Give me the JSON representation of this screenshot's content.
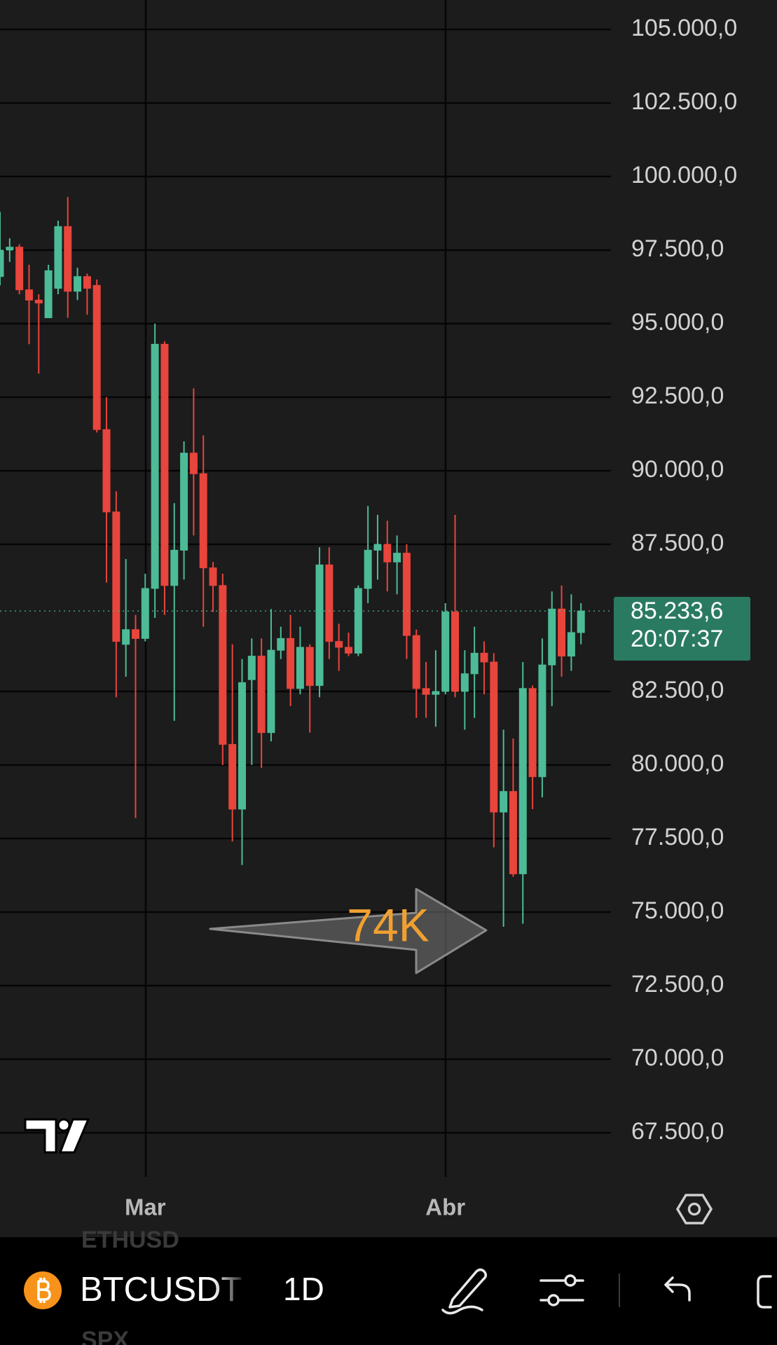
{
  "chart_data": {
    "type": "candlestick",
    "categories": [
      null,
      null,
      null,
      null,
      null,
      null,
      null,
      null,
      null,
      null,
      null,
      null,
      null,
      null,
      null,
      "Mar",
      null,
      null,
      null,
      null,
      null,
      null,
      null,
      null,
      null,
      null,
      null,
      null,
      null,
      null,
      null,
      null,
      null,
      null,
      null,
      null,
      null,
      null,
      null,
      null,
      null,
      null,
      null,
      null,
      null,
      null,
      "Abr",
      null,
      null,
      null,
      null,
      null,
      null,
      null,
      null,
      null,
      null,
      null,
      null,
      null,
      null
    ],
    "open": [
      96600,
      97500,
      97600,
      96150,
      95800,
      95200,
      96200,
      98300,
      96100,
      96600,
      96300,
      91400,
      88600,
      84100,
      84600,
      84300,
      86000,
      94300,
      86100,
      87300,
      90600,
      89900,
      86700,
      86100,
      80700,
      78500,
      82900,
      83700,
      81100,
      83900,
      84300,
      82600,
      84000,
      82700,
      86800,
      84200,
      84000,
      83800,
      86000,
      87300,
      87500,
      86900,
      87200,
      84400,
      82600,
      82400,
      82500,
      85200,
      82500,
      83100,
      83800,
      83500,
      78400,
      79100,
      76300,
      82600,
      79600,
      83400,
      85300,
      83700,
      84500
    ],
    "high": [
      98800,
      97900,
      97700,
      97000,
      96000,
      97000,
      98500,
      99300,
      96900,
      96700,
      96500,
      92500,
      89300,
      87000,
      85100,
      86500,
      95000,
      94400,
      88900,
      91000,
      92800,
      91200,
      86900,
      86500,
      84100,
      83600,
      84300,
      84300,
      85300,
      84700,
      85100,
      84700,
      84100,
      87400,
      87400,
      84800,
      84500,
      86100,
      88800,
      88500,
      88300,
      87800,
      87500,
      84600,
      83500,
      83900,
      85500,
      88500,
      83900,
      84700,
      84200,
      83800,
      81200,
      80900,
      83500,
      82700,
      84300,
      85900,
      86100,
      85800,
      85500
    ],
    "low": [
      96300,
      97100,
      96000,
      94300,
      93300,
      95300,
      96000,
      95200,
      95800,
      95300,
      91300,
      86200,
      82300,
      83000,
      78200,
      84200,
      85000,
      85100,
      81500,
      86300,
      87800,
      84700,
      85200,
      80000,
      77400,
      76600,
      80000,
      79900,
      80800,
      83600,
      82000,
      82400,
      81100,
      82300,
      83600,
      83200,
      83700,
      83700,
      85500,
      86300,
      85900,
      85800,
      83600,
      81600,
      81600,
      81300,
      82400,
      82300,
      81200,
      81600,
      82400,
      77200,
      74500,
      76200,
      74600,
      78500,
      78900,
      82000,
      83000,
      83200,
      84100
    ],
    "close": [
      97500,
      97600,
      96150,
      95800,
      95700,
      96800,
      98300,
      96100,
      96600,
      96200,
      91400,
      88600,
      84200,
      84600,
      84300,
      86000,
      94300,
      86100,
      87300,
      90600,
      89900,
      86700,
      86100,
      80700,
      78500,
      82800,
      83700,
      81100,
      83900,
      84300,
      82600,
      84000,
      82700,
      86800,
      84200,
      84000,
      83800,
      86000,
      87300,
      87500,
      86900,
      87200,
      84400,
      82600,
      82400,
      82500,
      85200,
      82500,
      83100,
      83800,
      83500,
      78400,
      79100,
      76300,
      82600,
      79600,
      83400,
      85300,
      83700,
      84500,
      85233.6
    ],
    "up_color": "#4dbb97",
    "down_color": "#e8453c",
    "ylim": [
      66000,
      106000
    ],
    "yticks": [
      {
        "value": 67500,
        "label": "67.500,0"
      },
      {
        "value": 70000,
        "label": "70.000,0"
      },
      {
        "value": 72500,
        "label": "72.500,0"
      },
      {
        "value": 75000,
        "label": "75.000,0"
      },
      {
        "value": 77500,
        "label": "77.500,0"
      },
      {
        "value": 80000,
        "label": "80.000,0"
      },
      {
        "value": 82500,
        "label": "82.500,0"
      },
      {
        "value": 87500,
        "label": "87.500,0"
      },
      {
        "value": 90000,
        "label": "90.000,0"
      },
      {
        "value": 92500,
        "label": "92.500,0"
      },
      {
        "value": 95000,
        "label": "95.000,0"
      },
      {
        "value": 97500,
        "label": "97.500,0"
      },
      {
        "value": 100000,
        "label": "100.000,0"
      },
      {
        "value": 102500,
        "label": "102.500,0"
      },
      {
        "value": 105000,
        "label": "105.000,0"
      }
    ],
    "grid": true,
    "last_price": {
      "value": 85233.6,
      "label": "85.233,6"
    },
    "countdown": "20:07:37",
    "annotation": {
      "text": "74K",
      "color": "#f0a030"
    }
  },
  "toolbar": {
    "symbol": "BTCUSDT",
    "interval": "1D",
    "watchlist_behind": [
      "ETHUSD",
      "SPX"
    ]
  }
}
